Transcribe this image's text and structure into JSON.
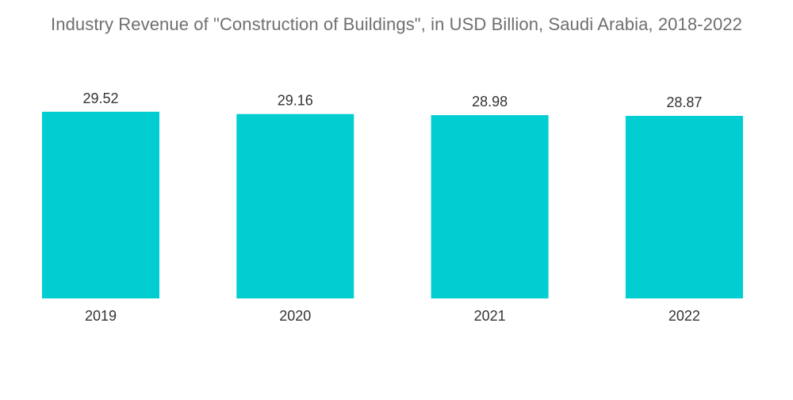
{
  "chart_data": {
    "type": "bar",
    "title": "Industry Revenue of \"Construction of Buildings\", in USD Billion, Saudi Arabia, 2018-2022",
    "xlabel": "",
    "ylabel": "",
    "categories": [
      "2019",
      "2020",
      "2021",
      "2022"
    ],
    "values": [
      29.52,
      29.16,
      28.98,
      28.87
    ],
    "value_labels": [
      "29.52",
      "29.16",
      "28.98",
      "28.87"
    ],
    "ylim": [
      0,
      30
    ],
    "grid": false,
    "legend": "none",
    "bar_color": "#00CED1"
  }
}
